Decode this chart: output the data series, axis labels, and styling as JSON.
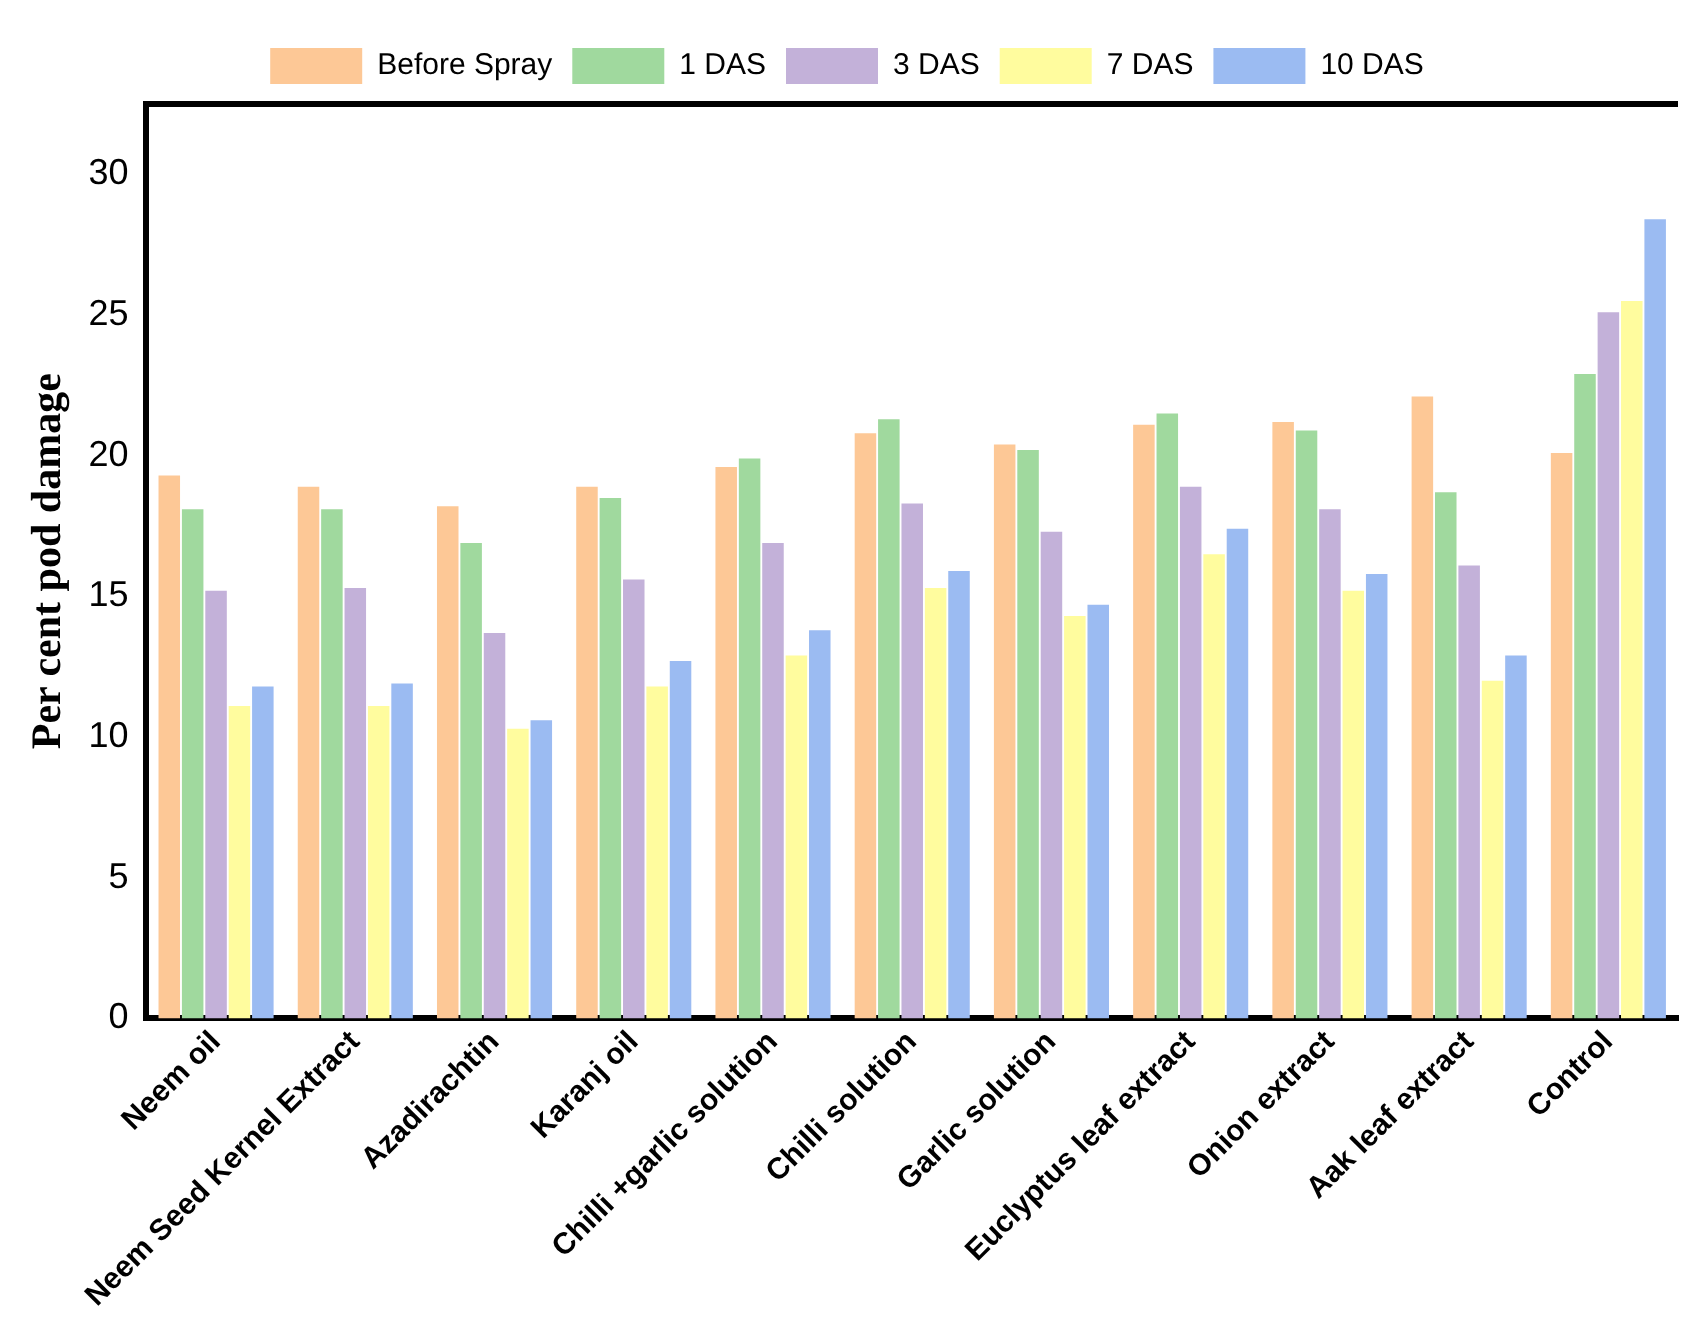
{
  "chart_data": {
    "type": "bar",
    "ylabel": "Per cent pod damage",
    "categories": [
      "Neem oil",
      "Neem Seed Kernel Extract",
      "Azadirachtin",
      "Karanj oil",
      "Chilli +garlic solution",
      "Chilli solution",
      "Garlic solution",
      "Euclyptus leaf extract",
      "Onion extract",
      "Aak leaf extract",
      "Control"
    ],
    "series": [
      {
        "name": "Before Spray",
        "color": "#fdc896",
        "values": [
          19.3,
          18.9,
          18.2,
          18.9,
          19.6,
          20.8,
          20.4,
          21.1,
          21.2,
          22.1,
          20.1
        ]
      },
      {
        "name": "1 DAS",
        "color": "#a0d99e",
        "values": [
          18.1,
          18.1,
          16.9,
          18.5,
          19.9,
          21.3,
          20.2,
          21.5,
          20.9,
          18.7,
          22.9
        ]
      },
      {
        "name": "3 DAS",
        "color": "#c3b1d9",
        "values": [
          15.2,
          15.3,
          13.7,
          15.6,
          16.9,
          18.3,
          17.3,
          18.9,
          18.1,
          16.1,
          25.1
        ]
      },
      {
        "name": "7 DAS",
        "color": "#fffc9e",
        "values": [
          11.1,
          11.1,
          10.3,
          11.8,
          12.9,
          15.3,
          14.3,
          16.5,
          15.2,
          12.0,
          25.5
        ]
      },
      {
        "name": "10 DAS",
        "color": "#9bbbf2",
        "values": [
          11.8,
          11.9,
          10.6,
          12.7,
          13.8,
          15.9,
          14.7,
          17.4,
          15.8,
          12.9,
          28.4
        ]
      }
    ],
    "ylim": [
      0,
      32.5
    ],
    "yticks": [
      0,
      5,
      10,
      15,
      20,
      25,
      30
    ],
    "grid": false,
    "legend": "top"
  }
}
